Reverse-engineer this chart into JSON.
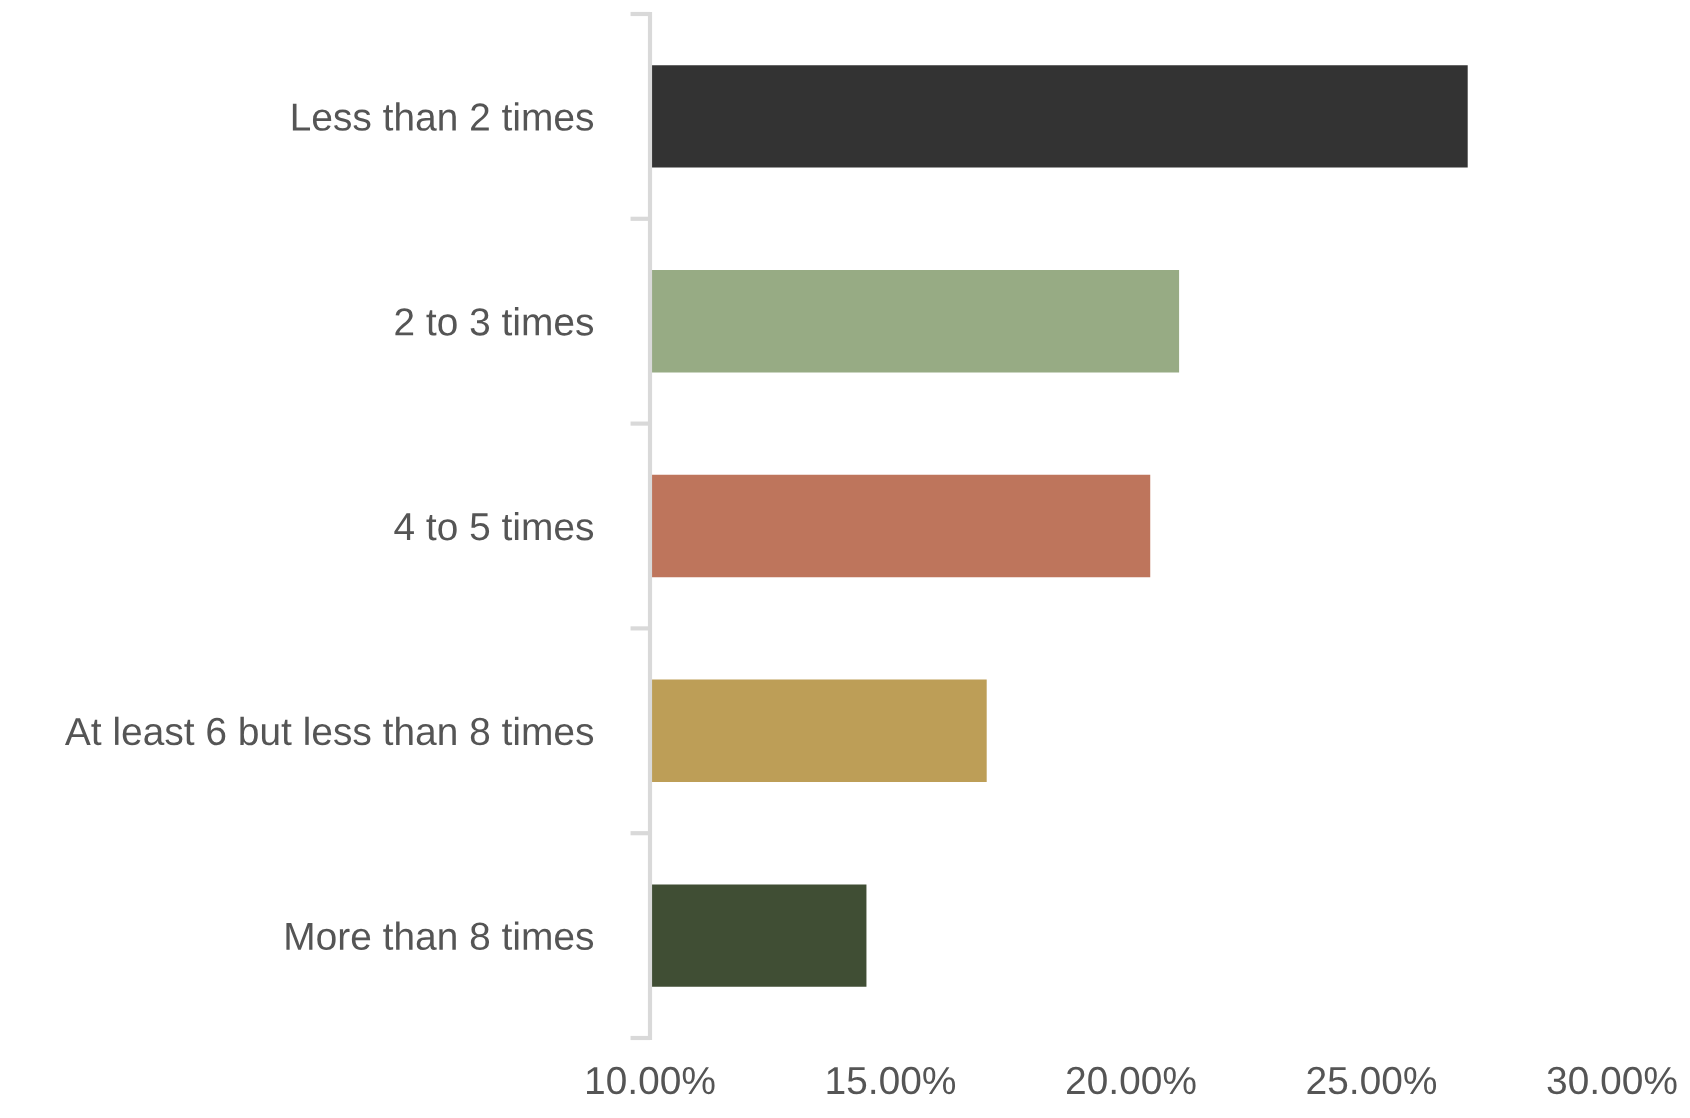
{
  "chart_data": {
    "type": "bar",
    "orientation": "horizontal",
    "categories": [
      "Less than 2 times",
      "2 to 3 times",
      "4 to 5 times",
      "At least 6 but less than 8 times",
      "More than 8 times"
    ],
    "values": [
      27.0,
      21.0,
      20.4,
      17.0,
      14.5
    ],
    "colors": [
      "#333333",
      "#97ab84",
      "#be755c",
      "#bd9e57",
      "#404e34"
    ],
    "xlim": [
      10,
      30
    ],
    "xticks": [
      {
        "value": 10,
        "label": "10.00%"
      },
      {
        "value": 15,
        "label": "15.00%"
      },
      {
        "value": 20,
        "label": "20.00%"
      },
      {
        "value": 25,
        "label": "25.00%"
      },
      {
        "value": 30,
        "label": "30.00%"
      }
    ],
    "grid": false,
    "legend": false
  }
}
